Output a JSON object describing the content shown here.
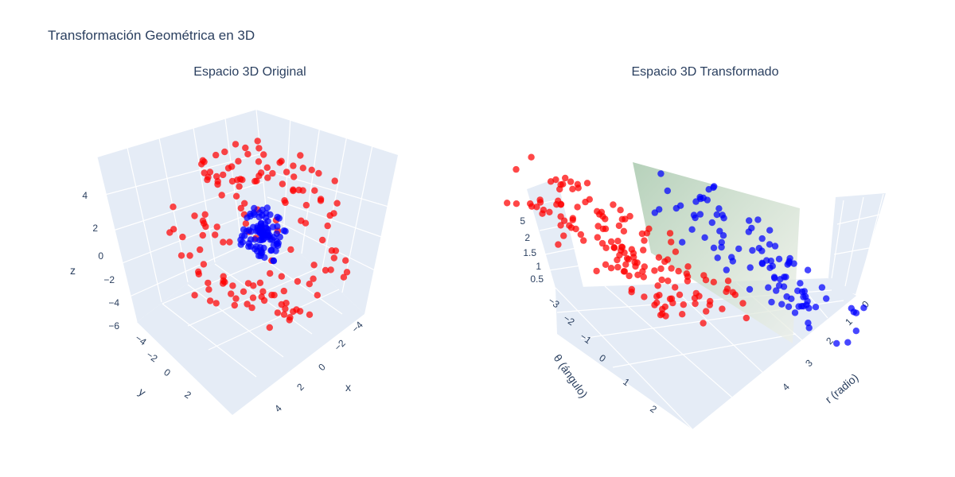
{
  "title": "Transformación Geométrica en 3D",
  "colors": {
    "series_outer": "#ff0000",
    "series_inner": "#0000ff",
    "pane": "#e5ecf6",
    "grid": "#ffffff",
    "text": "#2a3f5f",
    "plane_top": "#a9c9ae",
    "plane_bottom": "#e8ece4"
  },
  "chart_data": [
    {
      "type": "scatter3d",
      "title": "Espacio 3D Original",
      "xlabel": "x",
      "ylabel": "y",
      "zlabel": "z",
      "x_ticks": [
        "−4",
        "−2",
        "0",
        "2",
        "4"
      ],
      "y_ticks": [
        "−4",
        "−2",
        "0",
        "2"
      ],
      "z_ticks": [
        "−6",
        "−4",
        "−2",
        "0",
        "2",
        "4"
      ],
      "xlim": [
        -5,
        5
      ],
      "ylim": [
        -5,
        4
      ],
      "zlim": [
        -6,
        5.5
      ],
      "series": [
        {
          "color": "#ff0000",
          "shape": "sphere shell",
          "radius_range": [
            3.2,
            5
          ],
          "count": 150,
          "x": [
            -2.65,
            1.07,
            -2.94,
            -3.13,
            1.12,
            1.57,
            3.56,
            -2.43,
            -3.84,
            3.59,
            0.84,
            -0.05,
            1.11,
            1.13,
            1.94,
            -0.59,
            1.21,
            -1.32,
            1.65,
            0.68,
            0.71,
            -1.14,
            0.3,
            -3.03,
            0.78,
            0.18,
            0.98,
            1.73,
            -0.09,
            3.19,
            0.75,
            3.05,
            -2.84,
            -2.93,
            1.11,
            2.66,
            -0.73,
            -0.45,
            -0.97,
            2.88,
            1.44,
            0.07,
            -2.27,
            -3.43,
            4.13,
            -2.23,
            -1.09,
            2.7,
            -0.74,
            -1.95
          ],
          "y": [
            -2.76,
            -3.25,
            0.69,
            -3.06,
            0.55,
            -2.47,
            0.13,
            0.35,
            -0.61,
            2.18,
            2.52,
            3.69,
            0.32,
            2.72,
            2.94,
            -2.59,
            0.76,
            -1.69,
            -0.42,
            -1.85,
            3.48,
            -0.77,
            -2.72,
            -1.76,
            4.58,
            -3.85,
            -2.33,
            2.25,
            1.02,
            3.01,
            -2.71,
            -1.36,
            2.14,
            -0.67,
            -1.23,
            1.42,
            0.67,
            3.6,
            2.87,
            2.19,
            3.52,
            -3.3,
            -3.91,
            -2.7,
            1.23,
            2.88,
            0.65,
            1.34,
            3.91,
            -1.61
          ],
          "z": [
            1.12,
            3.11,
            2.97,
            1.84,
            3.96,
            -3.52,
            -2.52,
            3.88,
            -0.21,
            -0.74,
            3.59,
            -0.74,
            -3.74,
            -2.88,
            3.23,
            3.8,
            4.12,
            4.15,
            -3.75,
            3.3,
            -2.47,
            2.51,
            1.06,
            2.09,
            0.91,
            1.5,
            2.38,
            -3.65,
            -4.19,
            0.05,
            3.66,
            1.42,
            1.04,
            2.51,
            -3.72,
            2.54,
            -4.15,
            -1.94,
            3.72,
            -0.68,
            1.56,
            -1.24,
            0.3,
            0.78,
            -0.35,
            -0.41,
            -4.23,
            3.06,
            -0.41,
            2.33
          ]
        },
        {
          "color": "#0000ff",
          "shape": "sphere ball",
          "radius_range": [
            0,
            1.5
          ],
          "count": 100,
          "x": [
            0.05,
            0.55,
            0.77,
            -0.4,
            0.34,
            -0.41,
            -0.5,
            -0.08,
            0.78,
            -0.96,
            -0.42,
            -0.76,
            -0.11,
            0.19,
            -0.32,
            0.6,
            -0.06,
            0.61,
            -0.62,
            0.41,
            0.54,
            -0.02,
            -0.36,
            -0.35,
            -0.66,
            0.24,
            -0.2,
            0.34,
            0.66,
            0.06,
            -0.78,
            -0.22,
            -0.84,
            -1.17,
            1.1,
            0.5,
            0.07,
            -0.07,
            0.62,
            -0.76
          ],
          "y": [
            -0.58,
            0.88,
            0.6,
            0.88,
            0.73,
            -0.36,
            -0.72,
            0.75,
            0.38,
            -0.62,
            0.71,
            -0.59,
            -0.14,
            0.07,
            -0.44,
            1.22,
            0.75,
            0.75,
            -0.07,
            1.23,
            -0.5,
            -0.72,
            0.68,
            0.1,
            -0.47,
            -0.33,
            -0.85,
            0.06,
            0.62,
            -0.86,
            -0.39,
            -0.41,
            0.21,
            0.51,
            -0.42,
            1.07,
            -0.94,
            0.16,
            0.71,
            -0.36
          ],
          "z": [
            1.29,
            1.06,
            -0.12,
            0.14,
            1.33,
            -0.66,
            0.72,
            0.19,
            -0.47,
            0.86,
            -0.47,
            -0.66,
            1.03,
            -0.84,
            0.27,
            -0.06,
            -0.27,
            -0.72,
            0.89,
            -0.76,
            -0.75,
            0.05,
            -0.21,
            -0.2,
            0.12,
            -0.37,
            0.77,
            -1.1,
            -0.47,
            0.81,
            -0.41,
            0.12,
            -0.82,
            -0.04,
            0.17,
            0.47,
            -0.2,
            0.47,
            -0.17,
            -0.24
          ]
        }
      ]
    },
    {
      "type": "scatter3d",
      "title": "Espacio 3D Transformado",
      "xlabel": "r (radio)",
      "ylabel": "θ (ángulo)",
      "zlabel": "",
      "x_ticks": [
        "0",
        "1",
        "2",
        "3",
        "4"
      ],
      "y_ticks": [
        "−3",
        "−2",
        "−1",
        "0",
        "1",
        "2"
      ],
      "z_ticks": [
        "0.5",
        "1",
        "1.5",
        "2",
        "5"
      ],
      "xlim": [
        0,
        5
      ],
      "ylim": [
        -3.2,
        3.2
      ],
      "zlim": [
        0,
        5
      ],
      "plane": {
        "axis": "r",
        "value": 2.5
      },
      "series": [
        {
          "color": "#ff0000",
          "count": 150,
          "r_range": [
            3.2,
            5
          ],
          "x": [
            3.7,
            3.95,
            4.5,
            4.1,
            3.4,
            4.8,
            3.85,
            4.25,
            4.6,
            3.5,
            4.0,
            4.4,
            3.3,
            4.75,
            3.65,
            4.15,
            4.55,
            3.75,
            4.35,
            3.45,
            4.9,
            3.55,
            4.05,
            4.65,
            3.35,
            4.2,
            3.9,
            4.45,
            3.6,
            4.85,
            3.8,
            4.3,
            3.4,
            4.7,
            4.0,
            3.5,
            4.25,
            4.6,
            3.7,
            4.1
          ],
          "y": [
            -2.9,
            -2.5,
            -2.1,
            -1.7,
            -1.3,
            -0.9,
            -0.5,
            -0.1,
            0.3,
            0.7,
            1.1,
            1.5,
            1.9,
            2.3,
            2.7,
            3.0,
            -2.7,
            -2.2,
            -1.5,
            -1.0,
            -0.6,
            0.0,
            0.5,
            1.2,
            1.7,
            2.1,
            2.5,
            2.9,
            -2.0,
            -1.1,
            -0.3,
            0.9,
            1.4,
            2.4,
            -2.6,
            -1.8,
            -0.8,
            0.2,
            1.0,
            2.0
          ],
          "z": [
            1.5,
            2.0,
            1.2,
            1.8,
            0.9,
            1.6,
            2.4,
            1.1,
            1.9,
            2.6,
            1.4,
            0.8,
            2.1,
            1.3,
            1.7,
            2.2,
            1.0,
            2.3,
            1.5,
            0.7,
            1.8,
            2.5,
            1.2,
            1.6,
            2.0,
            0.9,
            1.4,
            2.2,
            1.9,
            1.1,
            2.7,
            1.3,
            0.8,
            1.7,
            2.1,
            1.5,
            2.4,
            1.0,
            1.8,
            1.2
          ]
        },
        {
          "color": "#0000ff",
          "count": 100,
          "r_range": [
            0,
            1.5
          ],
          "x": [
            0.2,
            0.5,
            0.8,
            1.1,
            1.4,
            0.3,
            0.6,
            0.9,
            1.2,
            0.4,
            0.7,
            1.0,
            1.3,
            0.15,
            0.45,
            0.75,
            1.05,
            1.35,
            0.25,
            0.55,
            0.85,
            1.15,
            1.45,
            0.35,
            0.65,
            0.95,
            1.25,
            0.1,
            0.5,
            0.9
          ],
          "y": [
            -2.8,
            -2.2,
            -1.6,
            -1.0,
            -0.4,
            0.2,
            0.8,
            1.4,
            2.0,
            2.6,
            -2.5,
            -1.9,
            -1.3,
            -0.7,
            -0.1,
            0.5,
            1.1,
            1.7,
            2.3,
            2.9,
            -2.0,
            -1.2,
            -0.5,
            0.3,
            1.0,
            1.8,
            2.5,
            -1.5,
            0.0,
            1.5
          ],
          "z": [
            1.6,
            1.2,
            2.0,
            1.4,
            0.8,
            1.8,
            2.2,
            1.0,
            1.5,
            1.9,
            1.1,
            2.4,
            1.3,
            1.7,
            0.9,
            2.1,
            1.5,
            1.2,
            1.8,
            1.4,
            2.3,
            1.0,
            1.6,
            2.0,
            1.3,
            0.7,
            1.9,
            1.5,
            2.2,
            1.1
          ]
        }
      ]
    }
  ]
}
